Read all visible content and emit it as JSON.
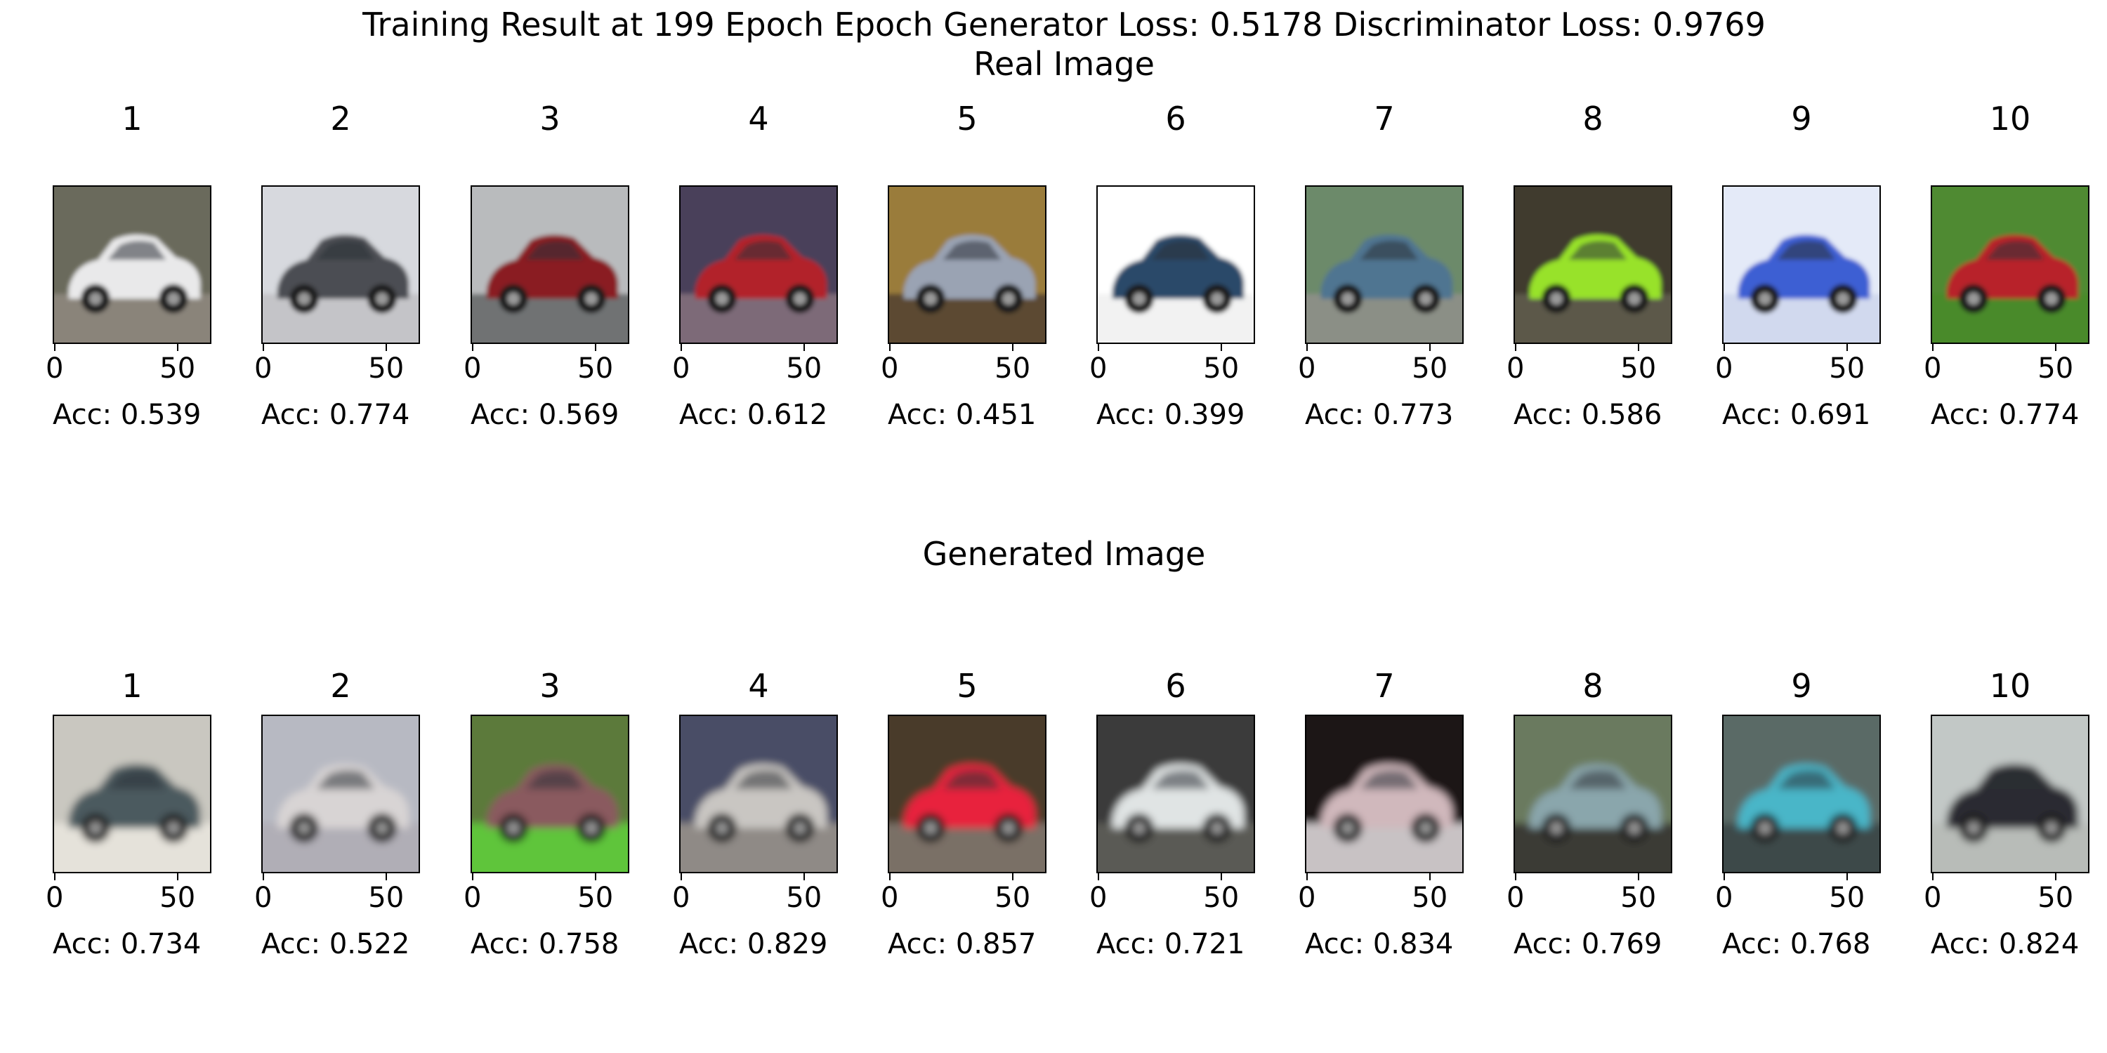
{
  "title": "Training Result at 199 Epoch Epoch Generator Loss: 0.5178 Discriminator Loss: 0.9769",
  "axis_ticks": [
    "0",
    "50"
  ],
  "rows": [
    {
      "title": "Real Image",
      "images": [
        {
          "label": "1",
          "acc": "Acc: 0.539",
          "icon": "white-car-street-photo",
          "bg": "#6b6a5c",
          "car": "#e9e9ea",
          "ground": "#8a847a"
        },
        {
          "label": "2",
          "acc": "Acc: 0.774",
          "icon": "grey-sports-car-photo",
          "bg": "#d7d9de",
          "car": "#4b4d52",
          "ground": "#c4c4c8"
        },
        {
          "label": "3",
          "acc": "Acc: 0.569",
          "icon": "red-black-coupe-photo",
          "bg": "#b9bbbd",
          "car": "#8a1b22",
          "ground": "#6f7273"
        },
        {
          "label": "4",
          "acc": "Acc: 0.612",
          "icon": "red-beetle-photo",
          "bg": "#4a3f5a",
          "car": "#b2232b",
          "ground": "#7d6a78"
        },
        {
          "label": "5",
          "acc": "Acc: 0.451",
          "icon": "silver-convertible-photo",
          "bg": "#9a7c3a",
          "car": "#9aa3b3",
          "ground": "#5b4a30"
        },
        {
          "label": "6",
          "acc": "Acc: 0.399",
          "icon": "blue-sedan-white-bg-photo",
          "bg": "#ffffff",
          "car": "#2a4a69",
          "ground": "#f2f2f2"
        },
        {
          "label": "7",
          "acc": "Acc: 0.773",
          "icon": "blue-hatchback-photo",
          "bg": "#6c8a6a",
          "car": "#4f7591",
          "ground": "#8b8f86"
        },
        {
          "label": "8",
          "acc": "Acc: 0.586",
          "icon": "green-lamborghini-photo",
          "bg": "#3f3a2e",
          "car": "#98e22a",
          "ground": "#5c5848"
        },
        {
          "label": "9",
          "acc": "Acc: 0.691",
          "icon": "blue-coupe-light-bg-photo",
          "bg": "#e4eaf8",
          "car": "#3c5fd3",
          "ground": "#d1d9ee"
        },
        {
          "label": "10",
          "acc": "Acc: 0.774",
          "icon": "red-muscle-car-grass-photo",
          "bg": "#4f8a32",
          "car": "#b8232b",
          "ground": "#4a8a2a"
        }
      ]
    },
    {
      "title": "Generated Image",
      "images": [
        {
          "label": "1",
          "acc": "Acc: 0.734",
          "icon": "generated-grey-car-blur",
          "bg": "#c9c7c0",
          "car": "#4b5a5e",
          "ground": "#e5e2da"
        },
        {
          "label": "2",
          "acc": "Acc: 0.522",
          "icon": "generated-white-car-blur",
          "bg": "#b7b9c2",
          "car": "#d8d4d4",
          "ground": "#b0aeb6"
        },
        {
          "label": "3",
          "acc": "Acc: 0.758",
          "icon": "generated-car-green-blur",
          "bg": "#5c7a3a",
          "car": "#8a5a5e",
          "ground": "#5fc53a"
        },
        {
          "label": "4",
          "acc": "Acc: 0.829",
          "icon": "generated-silver-car-blur",
          "bg": "#4a4e66",
          "car": "#c9c6c2",
          "ground": "#8f8a86"
        },
        {
          "label": "5",
          "acc": "Acc: 0.857",
          "icon": "generated-red-car-blur",
          "bg": "#4a3a2c",
          "car": "#e8223c",
          "ground": "#7a6f66"
        },
        {
          "label": "6",
          "acc": "Acc: 0.721",
          "icon": "generated-white-car-dark-blur",
          "bg": "#3a3a3a",
          "car": "#e0e4e4",
          "ground": "#5a5a54"
        },
        {
          "label": "7",
          "acc": "Acc: 0.834",
          "icon": "generated-red-white-car-blur",
          "bg": "#1e1518",
          "car": "#d0b8bc",
          "ground": "#c8c2c4"
        },
        {
          "label": "8",
          "acc": "Acc: 0.769",
          "icon": "generated-teal-car-blur",
          "bg": "#6a7a5e",
          "car": "#8aa6ac",
          "ground": "#3a3a36"
        },
        {
          "label": "9",
          "acc": "Acc: 0.768",
          "icon": "generated-cyan-car-blur",
          "bg": "#5a6a66",
          "car": "#4ab6c8",
          "ground": "#3c4a48"
        },
        {
          "label": "10",
          "acc": "Acc: 0.824",
          "icon": "generated-dark-car-blur",
          "bg": "#c2c8c6",
          "car": "#2a2a30",
          "ground": "#b8bcb8"
        }
      ]
    }
  ]
}
